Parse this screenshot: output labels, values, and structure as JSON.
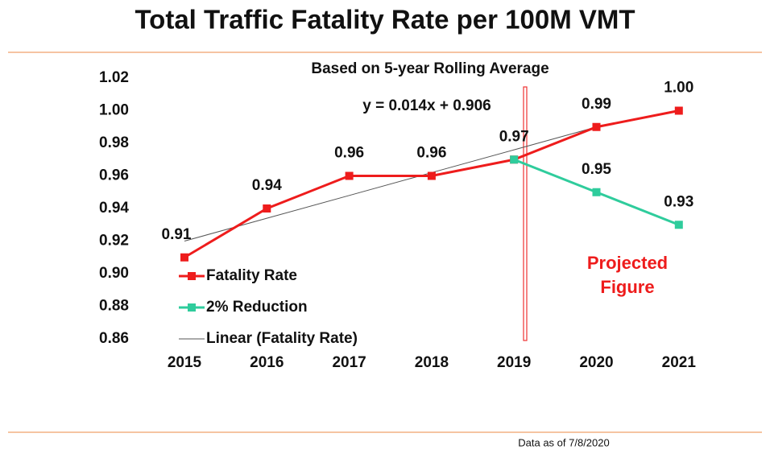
{
  "chart_data": {
    "type": "line",
    "title": "Total Traffic Fatality Rate per 100M VMT",
    "subtitle": "Based on 5-year Rolling Average",
    "annotations": [
      "y = 0.014x + 0.906",
      "Projected",
      "Figure"
    ],
    "footnote": "Data as of 7/8/2020",
    "categories": [
      "2015",
      "2016",
      "2017",
      "2018",
      "2019",
      "2020",
      "2021"
    ],
    "series": [
      {
        "name": "Fatality Rate",
        "color": "#ee1c1c",
        "marker": true,
        "values": [
          0.91,
          0.94,
          0.96,
          0.96,
          0.97,
          0.99,
          1.0
        ],
        "value_labels": [
          "0.91",
          "0.94",
          "0.96",
          "0.96",
          "0.97",
          "0.99",
          "1.00"
        ]
      },
      {
        "name": "2% Reduction",
        "color": "#2fcc9c",
        "marker": true,
        "values": [
          null,
          null,
          null,
          null,
          0.97,
          0.95,
          0.93
        ],
        "value_labels": [
          null,
          null,
          null,
          null,
          null,
          "0.95",
          "0.93"
        ]
      },
      {
        "name": "Linear (Fatality Rate)",
        "color": "#555555",
        "marker": false,
        "values": [
          0.92,
          0.934,
          0.948,
          0.962,
          0.976,
          0.99,
          null
        ]
      }
    ],
    "ylim": [
      0.86,
      1.02
    ],
    "yticks": [
      {
        "value": 0.86,
        "label": "0.86"
      },
      {
        "value": 0.88,
        "label": "0.88"
      },
      {
        "value": 0.9,
        "label": "0.90"
      },
      {
        "value": 0.92,
        "label": "0.92"
      },
      {
        "value": 0.94,
        "label": "0.94"
      },
      {
        "value": 0.96,
        "label": "0.96"
      },
      {
        "value": 0.98,
        "label": "0.98"
      },
      {
        "value": 1,
        "label": "1.00"
      },
      {
        "value": 1.02,
        "label": "1.02"
      }
    ],
    "grid": false,
    "legend": "lower left"
  }
}
